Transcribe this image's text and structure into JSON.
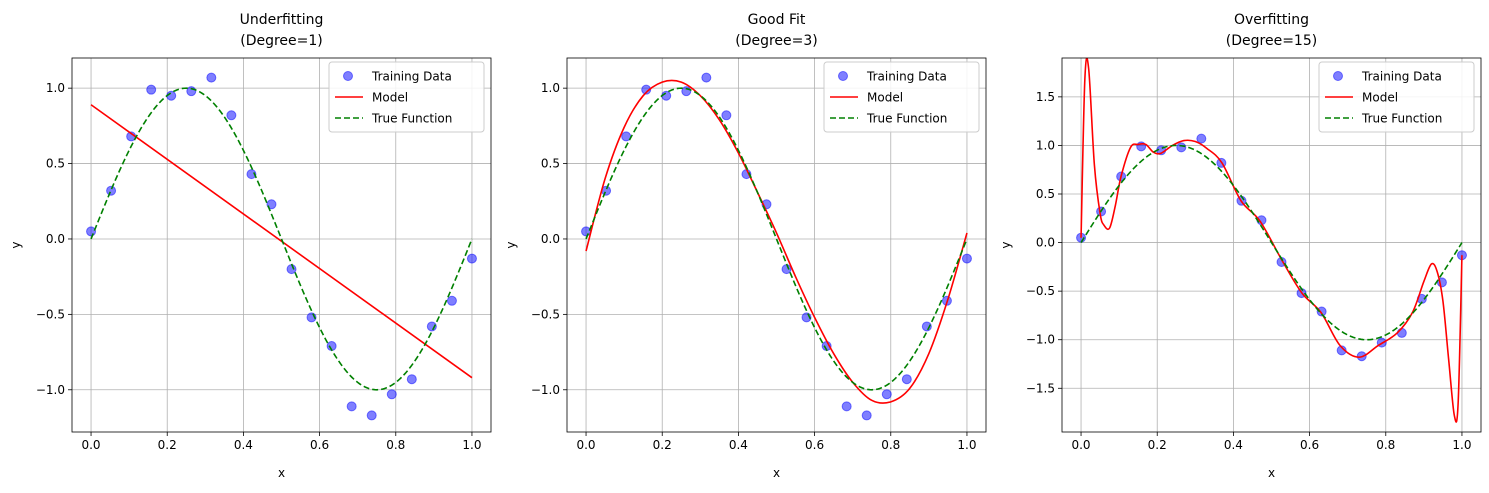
{
  "chart_data": [
    {
      "type": "line",
      "title": "Underfitting",
      "subtitle": "(Degree=1)",
      "xlabel": "x",
      "ylabel": "y",
      "xlim": [
        -0.05,
        1.05
      ],
      "ylim": [
        -1.28,
        1.2
      ],
      "xticks": [
        0.0,
        0.2,
        0.4,
        0.6,
        0.8,
        1.0
      ],
      "yticks": [
        -1.0,
        -0.5,
        0.0,
        0.5,
        1.0
      ],
      "xtick_labels": [
        "0.0",
        "0.2",
        "0.4",
        "0.6",
        "0.8",
        "1.0"
      ],
      "ytick_labels": [
        "−1.0",
        "−0.5",
        "0.0",
        "0.5",
        "1.0"
      ],
      "grid": true,
      "legend_position": "top-right",
      "legend": [
        "Training Data",
        "Model",
        "True Function"
      ],
      "training_data": {
        "name": "Training Data",
        "color": "#0000ff",
        "x": [
          0.0,
          0.0526,
          0.1053,
          0.1579,
          0.2105,
          0.2632,
          0.3158,
          0.3684,
          0.4211,
          0.4737,
          0.5263,
          0.5789,
          0.6316,
          0.6842,
          0.7368,
          0.7895,
          0.8421,
          0.8947,
          0.9474,
          1.0
        ],
        "y": [
          0.05,
          0.32,
          0.68,
          0.99,
          0.95,
          0.98,
          1.07,
          0.82,
          0.43,
          0.23,
          -0.2,
          -0.52,
          -0.71,
          -1.11,
          -1.17,
          -1.03,
          -0.93,
          -0.58,
          -0.41,
          -0.13
        ]
      },
      "model": {
        "name": "Model",
        "color": "#ff0000",
        "x": [
          0.0,
          1.0
        ],
        "y": [
          0.89,
          -0.92
        ]
      },
      "true_function": {
        "name": "True Function",
        "color": "#008000",
        "style": "dashed",
        "formula": "y = sin(2πx)",
        "x_range": [
          0.0,
          1.0
        ]
      }
    },
    {
      "type": "line",
      "title": "Good Fit",
      "subtitle": "(Degree=3)",
      "xlabel": "x",
      "ylabel": "y",
      "xlim": [
        -0.05,
        1.05
      ],
      "ylim": [
        -1.28,
        1.2
      ],
      "xticks": [
        0.0,
        0.2,
        0.4,
        0.6,
        0.8,
        1.0
      ],
      "yticks": [
        -1.0,
        -0.5,
        0.0,
        0.5,
        1.0
      ],
      "xtick_labels": [
        "0.0",
        "0.2",
        "0.4",
        "0.6",
        "0.8",
        "1.0"
      ],
      "ytick_labels": [
        "−1.0",
        "−0.5",
        "0.0",
        "0.5",
        "1.0"
      ],
      "grid": true,
      "legend_position": "top-right",
      "legend": [
        "Training Data",
        "Model",
        "True Function"
      ],
      "training_data": {
        "name": "Training Data",
        "color": "#0000ff",
        "x": [
          0.0,
          0.0526,
          0.1053,
          0.1579,
          0.2105,
          0.2632,
          0.3158,
          0.3684,
          0.4211,
          0.4737,
          0.5263,
          0.5789,
          0.6316,
          0.6842,
          0.7368,
          0.7895,
          0.8421,
          0.8947,
          0.9474,
          1.0
        ],
        "y": [
          0.05,
          0.32,
          0.68,
          0.99,
          0.95,
          0.98,
          1.07,
          0.82,
          0.43,
          0.23,
          -0.2,
          -0.52,
          -0.71,
          -1.11,
          -1.17,
          -1.03,
          -0.93,
          -0.58,
          -0.41,
          -0.13
        ]
      },
      "model": {
        "name": "Model",
        "color": "#ff0000",
        "x": [
          0.0,
          0.05,
          0.1,
          0.15,
          0.2,
          0.25,
          0.3,
          0.35,
          0.4,
          0.45,
          0.5,
          0.55,
          0.6,
          0.65,
          0.7,
          0.75,
          0.8,
          0.85,
          0.9,
          0.95,
          1.0
        ],
        "y": [
          -0.08,
          0.4,
          0.74,
          0.95,
          1.04,
          1.04,
          0.95,
          0.79,
          0.57,
          0.31,
          0.04,
          -0.25,
          -0.52,
          -0.76,
          -0.95,
          -1.07,
          -1.08,
          -0.99,
          -0.76,
          -0.4,
          0.04
        ]
      },
      "true_function": {
        "name": "True Function",
        "color": "#008000",
        "style": "dashed",
        "formula": "y = sin(2πx)",
        "x_range": [
          0.0,
          1.0
        ]
      }
    },
    {
      "type": "line",
      "title": "Overfitting",
      "subtitle": "(Degree=15)",
      "xlabel": "x",
      "ylabel": "y",
      "xlim": [
        -0.05,
        1.05
      ],
      "ylim": [
        -1.95,
        1.9
      ],
      "xticks": [
        0.0,
        0.2,
        0.4,
        0.6,
        0.8,
        1.0
      ],
      "yticks": [
        -1.5,
        -1.0,
        -0.5,
        0.0,
        0.5,
        1.0,
        1.5
      ],
      "xtick_labels": [
        "0.0",
        "0.2",
        "0.4",
        "0.6",
        "0.8",
        "1.0"
      ],
      "ytick_labels": [
        "−1.5",
        "−1.0",
        "−0.5",
        "0.0",
        "0.5",
        "1.0",
        "1.5"
      ],
      "grid": true,
      "legend_position": "top-right",
      "legend": [
        "Training Data",
        "Model",
        "True Function"
      ],
      "training_data": {
        "name": "Training Data",
        "color": "#0000ff",
        "x": [
          0.0,
          0.0526,
          0.1053,
          0.1579,
          0.2105,
          0.2632,
          0.3158,
          0.3684,
          0.4211,
          0.4737,
          0.5263,
          0.5789,
          0.6316,
          0.6842,
          0.7368,
          0.7895,
          0.8421,
          0.8947,
          0.9474,
          1.0
        ],
        "y": [
          0.05,
          0.32,
          0.68,
          0.99,
          0.95,
          0.98,
          1.07,
          0.82,
          0.43,
          0.23,
          -0.2,
          -0.52,
          -0.71,
          -1.11,
          -1.17,
          -1.03,
          -0.93,
          -0.58,
          -0.41,
          -0.13
        ]
      },
      "model": {
        "name": "Model",
        "color": "#ff0000",
        "x": [
          0.0,
          0.01,
          0.02,
          0.035,
          0.05,
          0.06,
          0.075,
          0.09,
          0.105,
          0.13,
          0.15,
          0.17,
          0.19,
          0.21,
          0.24,
          0.27,
          0.3,
          0.33,
          0.37,
          0.42,
          0.47,
          0.53,
          0.58,
          0.63,
          0.68,
          0.73,
          0.78,
          0.83,
          0.87,
          0.9,
          0.92,
          0.935,
          0.95,
          0.965,
          0.98,
          0.99,
          1.0
        ],
        "y": [
          0.05,
          1.68,
          1.79,
          0.8,
          0.3,
          0.18,
          0.15,
          0.38,
          0.68,
          0.98,
          1.01,
          1.01,
          0.93,
          0.92,
          1.0,
          1.05,
          1.04,
          0.97,
          0.82,
          0.43,
          0.22,
          -0.2,
          -0.52,
          -0.72,
          -1.06,
          -1.18,
          -1.06,
          -0.93,
          -0.72,
          -0.4,
          -0.22,
          -0.3,
          -0.6,
          -1.2,
          -1.78,
          -1.65,
          -0.13
        ]
      },
      "true_function": {
        "name": "True Function",
        "color": "#008000",
        "style": "dashed",
        "formula": "y = sin(2πx)",
        "x_range": [
          0.0,
          1.0
        ]
      }
    }
  ]
}
